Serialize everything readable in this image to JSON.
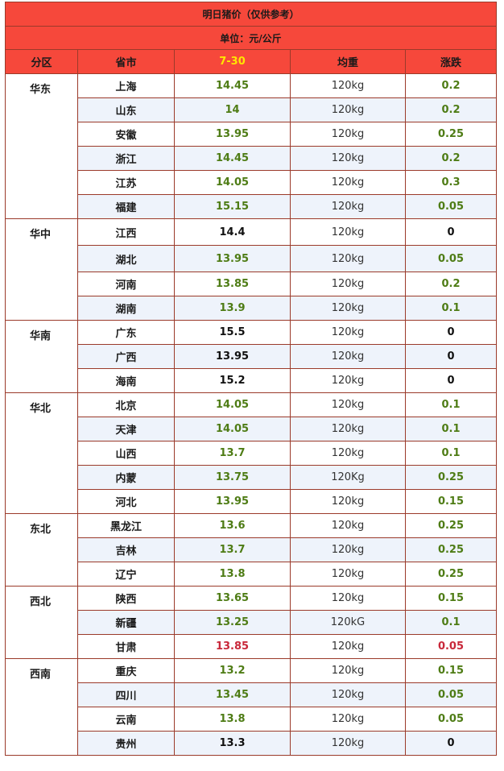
{
  "title": "明日猪价（仅供参考）",
  "unit": "单位：元/公斤",
  "headers": {
    "region": "分区",
    "province": "省市",
    "date": "7-30",
    "weight": "均重",
    "change": "涨跌"
  },
  "colors": {
    "header_bg": "#f6483b",
    "border": "#9b3a2a",
    "green": "#4e7c15",
    "red": "#c8283a",
    "date_yellow": "#ffe600"
  },
  "regions": [
    {
      "name": "华东",
      "name_color": "green",
      "rows": [
        {
          "province": "上海",
          "province_color": "black",
          "price": "14.45",
          "price_color": "green",
          "weight": "120kg",
          "weight_color": "normal",
          "change": "0.2",
          "change_color": "green"
        },
        {
          "province": "山东",
          "province_color": "black",
          "price": "14",
          "price_color": "green",
          "weight": "120kg",
          "weight_color": "normal",
          "change": "0.2",
          "change_color": "green"
        },
        {
          "province": "安徽",
          "province_color": "black",
          "price": "13.95",
          "price_color": "green",
          "weight": "120kg",
          "weight_color": "normal",
          "change": "0.25",
          "change_color": "green"
        },
        {
          "province": "浙江",
          "province_color": "black",
          "price": "14.45",
          "price_color": "green",
          "weight": "120kg",
          "weight_color": "normal",
          "change": "0.2",
          "change_color": "green"
        },
        {
          "province": "江苏",
          "province_color": "black",
          "price": "14.05",
          "price_color": "green",
          "weight": "120kg",
          "weight_color": "normal",
          "change": "0.3",
          "change_color": "green"
        },
        {
          "province": "福建",
          "province_color": "black",
          "price": "15.15",
          "price_color": "green",
          "weight": "120kg",
          "weight_color": "red",
          "change": "0.05",
          "change_color": "green"
        }
      ]
    },
    {
      "name": "华中",
      "name_color": "black",
      "rows": [
        {
          "province": "江西",
          "province_color": "black",
          "price": "14.4",
          "price_color": "black",
          "weight": "120kg",
          "weight_color": "normal",
          "change": "0",
          "change_color": "black"
        },
        {
          "province": "湖北",
          "province_color": "black",
          "price": "13.95",
          "price_color": "green",
          "weight": "120kg",
          "weight_color": "normal",
          "change": "0.05",
          "change_color": "green"
        },
        {
          "province": "河南",
          "province_color": "black",
          "price": "13.85",
          "price_color": "green",
          "weight": "120kg",
          "weight_color": "normal",
          "change": "0.2",
          "change_color": "green"
        },
        {
          "province": "湖南",
          "province_color": "black",
          "price": "13.9",
          "price_color": "green",
          "weight": "120kg",
          "weight_color": "normal",
          "change": "0.1",
          "change_color": "green"
        }
      ]
    },
    {
      "name": "华南",
      "name_color": "black",
      "rows": [
        {
          "province": "广东",
          "province_color": "black",
          "price": "15.5",
          "price_color": "black",
          "weight": "120kg",
          "weight_color": "red",
          "change": "0",
          "change_color": "black"
        },
        {
          "province": "广西",
          "province_color": "black",
          "price": "13.95",
          "price_color": "black",
          "weight": "120kg",
          "weight_color": "normal",
          "change": "0",
          "change_color": "black"
        },
        {
          "province": "海南",
          "province_color": "black",
          "price": "15.2",
          "price_color": "black",
          "weight": "120kg",
          "weight_color": "normal",
          "change": "0",
          "change_color": "black"
        }
      ]
    },
    {
      "name": "华北",
      "name_color": "black",
      "rows": [
        {
          "province": "北京",
          "province_color": "black",
          "price": "14.05",
          "price_color": "green",
          "weight": "120kg",
          "weight_color": "normal",
          "change": "0.1",
          "change_color": "green"
        },
        {
          "province": "天津",
          "province_color": "black",
          "price": "14.05",
          "price_color": "green",
          "weight": "120kg",
          "weight_color": "normal",
          "change": "0.1",
          "change_color": "green"
        },
        {
          "province": "山西",
          "province_color": "black",
          "price": "13.7",
          "price_color": "green",
          "weight": "120kg",
          "weight_color": "normal",
          "change": "0.1",
          "change_color": "green"
        },
        {
          "province": "内蒙",
          "province_color": "black",
          "price": "13.75",
          "price_color": "green",
          "weight": "120Kg",
          "weight_color": "normal",
          "change": "0.25",
          "change_color": "green"
        },
        {
          "province": "河北",
          "province_color": "black",
          "price": "13.95",
          "price_color": "green",
          "weight": "120kg",
          "weight_color": "normal",
          "change": "0.15",
          "change_color": "green"
        }
      ]
    },
    {
      "name": "东北",
      "name_color": "black",
      "rows": [
        {
          "province": "黑龙江",
          "province_color": "black",
          "price": "13.6",
          "price_color": "green",
          "weight": "120kg",
          "weight_color": "normal",
          "change": "0.25",
          "change_color": "green"
        },
        {
          "province": "吉林",
          "province_color": "black",
          "price": "13.7",
          "price_color": "green",
          "weight": "120kg",
          "weight_color": "normal",
          "change": "0.25",
          "change_color": "green"
        },
        {
          "province": "辽宁",
          "province_color": "black",
          "price": "13.8",
          "price_color": "green",
          "weight": "120kg",
          "weight_color": "normal",
          "change": "0.25",
          "change_color": "green"
        }
      ]
    },
    {
      "name": "西北",
      "name_color": "black",
      "rows": [
        {
          "province": "陕西",
          "province_color": "black",
          "price": "13.65",
          "price_color": "green",
          "weight": "120kg",
          "weight_color": "normal",
          "change": "0.15",
          "change_color": "green"
        },
        {
          "province": "新疆",
          "province_color": "black",
          "price": "13.25",
          "price_color": "green",
          "weight": "120kG",
          "weight_color": "normal",
          "change": "0.1",
          "change_color": "green"
        },
        {
          "province": "甘肃",
          "province_color": "black",
          "price": "13.85",
          "price_color": "red",
          "weight": "120kg",
          "weight_color": "normal",
          "change": "0.05",
          "change_color": "red"
        }
      ]
    },
    {
      "name": "西南",
      "name_color": "black",
      "rows": [
        {
          "province": "重庆",
          "province_color": "black",
          "price": "13.2",
          "price_color": "green",
          "weight": "120kg",
          "weight_color": "red",
          "change": "0.15",
          "change_color": "green"
        },
        {
          "province": "四川",
          "province_color": "black",
          "price": "13.45",
          "price_color": "green",
          "weight": "120kg",
          "weight_color": "normal",
          "change": "0.05",
          "change_color": "green"
        },
        {
          "province": "云南",
          "province_color": "green",
          "price": "13.8",
          "price_color": "green",
          "weight": "120kg",
          "weight_color": "normal",
          "change": "0.05",
          "change_color": "green"
        },
        {
          "province": "贵州",
          "province_color": "black",
          "price": "13.3",
          "price_color": "black",
          "weight": "120kg",
          "weight_color": "normal",
          "change": "0",
          "change_color": "black"
        }
      ]
    }
  ]
}
